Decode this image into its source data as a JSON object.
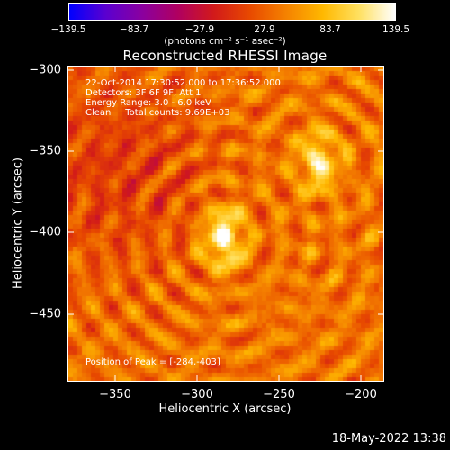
{
  "colorbar": {
    "ticks": [
      "−139.5",
      "−83.7",
      "−27.9",
      "27.9",
      "83.7",
      "139.5"
    ],
    "unit": "(photons cm⁻² s⁻¹ asec⁻²)",
    "min": -139.5,
    "max": 139.5,
    "colormap": [
      "#0000ff",
      "#5a00d0",
      "#8a00a0",
      "#b00060",
      "#d21a1a",
      "#e84a00",
      "#f58200",
      "#ffb800",
      "#ffe060",
      "#ffffff"
    ]
  },
  "title": "Reconstructed RHESSI Image",
  "info": {
    "line1": "22-Oct-2014 17:30:52.000 to 17:36:52.000",
    "line2": "Detectors: 3F 6F 9F, Att 1",
    "line3": "Energy Range: 3.0 - 6.0 keV",
    "line4": "Clean     Total counts: 9.69E+03"
  },
  "peak_text": "Position of Peak = [-284,-403]",
  "axes": {
    "xlabel": "Heliocentric X (arcsec)",
    "ylabel": "Heliocentric Y (arcsec)",
    "xticks": [
      "−350",
      "−300",
      "−250",
      "−200"
    ],
    "yticks": [
      "−300",
      "−350",
      "−400",
      "−450"
    ],
    "xrange": [
      -378,
      -185
    ],
    "yrange": [
      -300,
      -492
    ]
  },
  "sources": [
    {
      "x": -284,
      "y": -403,
      "strength": 1.0
    },
    {
      "x": -226,
      "y": -357,
      "strength": 0.72
    }
  ],
  "datestamp": "18-May-2022 13:38"
}
